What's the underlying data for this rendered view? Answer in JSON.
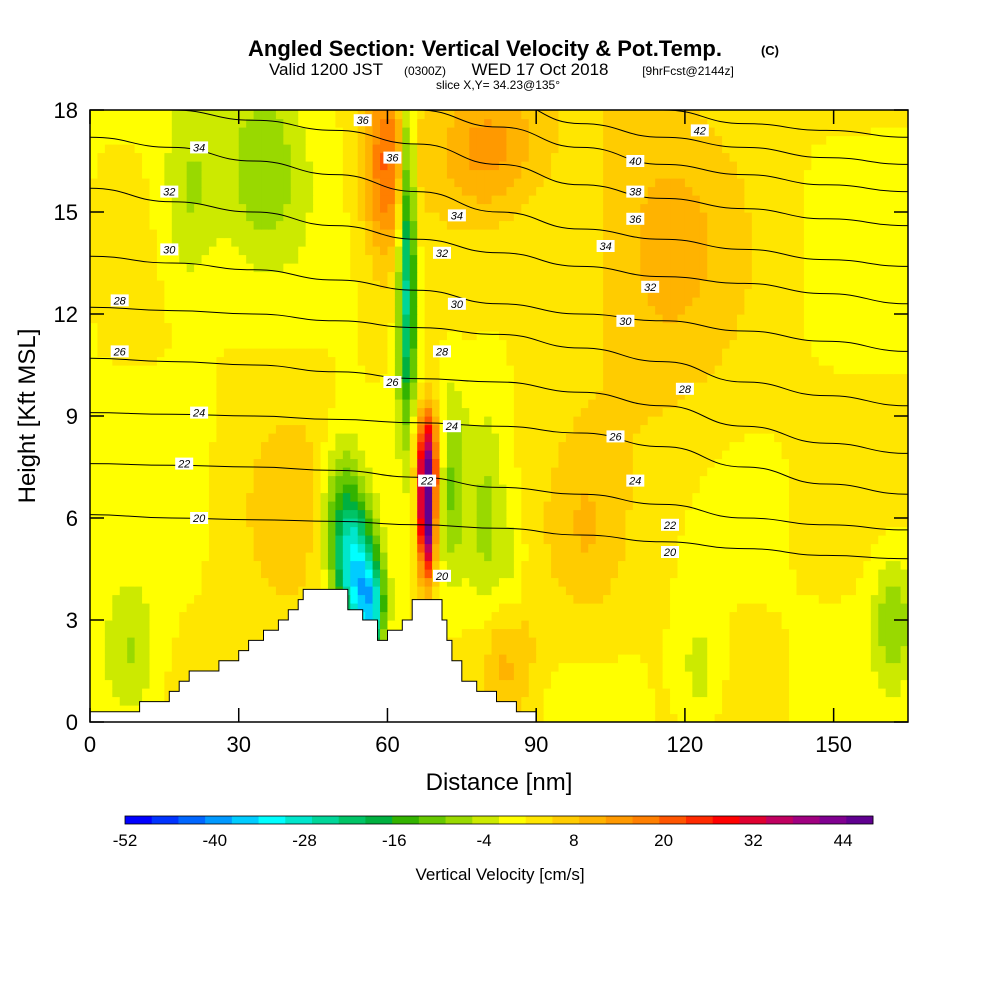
{
  "chart_data": {
    "type": "heatmap",
    "title": "Angled Section: Vertical Velocity & Pot.Temp.",
    "title_units": "(C)",
    "subtitle": {
      "valid": "Valid 1200 JST",
      "zulu": "(0300Z)",
      "date": "WED 17 Oct 2018",
      "forecast": "[9hrFcst@2144z]"
    },
    "slice_label": "slice X,Y= 34.23@135°",
    "xlabel": "Distance [nm]",
    "ylabel": "Height [Kft MSL]",
    "xlim": [
      0,
      165
    ],
    "ylim": [
      0,
      18
    ],
    "x_ticks": [
      "0",
      "30",
      "60",
      "90",
      "120",
      "150"
    ],
    "x_tick_values": [
      0,
      30,
      60,
      90,
      120,
      150
    ],
    "y_ticks": [
      "0",
      "3",
      "6",
      "9",
      "12",
      "15",
      "18"
    ],
    "y_tick_values": [
      0,
      3,
      6,
      9,
      12,
      15,
      18
    ],
    "colorbar": {
      "label": "Vertical Velocity [cm/s]",
      "range": [
        -52,
        48
      ],
      "tick_labels": [
        "-52",
        "-40",
        "-28",
        "-16",
        "-4",
        "8",
        "20",
        "32",
        "44"
      ],
      "tick_values": [
        -52,
        -40,
        -28,
        -16,
        -4,
        8,
        20,
        32,
        44
      ],
      "colors": [
        "#0000ff",
        "#0033ff",
        "#0066ff",
        "#0099ff",
        "#00ccff",
        "#00ffff",
        "#00e6cc",
        "#00d699",
        "#00c466",
        "#00b040",
        "#33b300",
        "#66c800",
        "#99d900",
        "#ccea00",
        "#ffff00",
        "#ffe600",
        "#ffcc00",
        "#ffb300",
        "#ff9900",
        "#ff7f00",
        "#ff5500",
        "#ff2a00",
        "#ff0000",
        "#e00030",
        "#c00060",
        "#a00080",
        "#800090",
        "#600090"
      ]
    },
    "terrain_profile": [
      [
        0,
        0.3
      ],
      [
        10,
        0.3
      ],
      [
        10,
        0.6
      ],
      [
        16,
        0.6
      ],
      [
        16,
        0.9
      ],
      [
        18,
        0.9
      ],
      [
        18,
        1.2
      ],
      [
        20,
        1.2
      ],
      [
        20,
        1.5
      ],
      [
        26,
        1.5
      ],
      [
        26,
        1.8
      ],
      [
        30,
        1.8
      ],
      [
        30,
        2.1
      ],
      [
        32,
        2.1
      ],
      [
        32,
        2.4
      ],
      [
        35,
        2.4
      ],
      [
        35,
        2.7
      ],
      [
        38,
        2.7
      ],
      [
        38,
        3.0
      ],
      [
        40,
        3.0
      ],
      [
        40,
        3.3
      ],
      [
        42,
        3.3
      ],
      [
        42,
        3.6
      ],
      [
        43,
        3.6
      ],
      [
        43,
        3.9
      ],
      [
        52,
        3.9
      ],
      [
        52,
        3.3
      ],
      [
        55,
        3.3
      ],
      [
        55,
        3.0
      ],
      [
        58,
        3.0
      ],
      [
        58,
        2.4
      ],
      [
        60,
        2.4
      ],
      [
        60,
        2.7
      ],
      [
        63,
        2.7
      ],
      [
        63,
        3.0
      ],
      [
        65,
        3.0
      ],
      [
        65,
        3.6
      ],
      [
        71,
        3.6
      ],
      [
        71,
        3.0
      ],
      [
        72,
        3.0
      ],
      [
        72,
        2.4
      ],
      [
        73,
        2.4
      ],
      [
        73,
        1.8
      ],
      [
        75,
        1.8
      ],
      [
        75,
        1.2
      ],
      [
        78,
        1.2
      ],
      [
        78,
        0.9
      ],
      [
        82,
        0.9
      ],
      [
        82,
        0.6
      ],
      [
        86,
        0.6
      ],
      [
        86,
        0.3
      ],
      [
        90,
        0.3
      ],
      [
        90,
        0
      ]
    ],
    "contours": [
      {
        "theta": 20,
        "heights": [
          6.1,
          6.0,
          5.95,
          5.9,
          5.8,
          5.7,
          5.5,
          5.3,
          5.1,
          4.9,
          4.8
        ]
      },
      {
        "theta": 22,
        "heights": [
          7.6,
          7.55,
          7.5,
          7.4,
          7.2,
          6.9,
          6.7,
          6.4,
          6.0,
          5.8,
          5.65
        ]
      },
      {
        "theta": 24,
        "heights": [
          9.1,
          9.05,
          9.0,
          8.9,
          8.8,
          8.7,
          8.5,
          8.1,
          7.5,
          7.0,
          6.7
        ]
      },
      {
        "theta": 26,
        "heights": [
          10.7,
          10.6,
          10.5,
          10.3,
          10.1,
          10.0,
          9.7,
          9.3,
          8.7,
          8.2,
          7.9
        ]
      },
      {
        "theta": 28,
        "heights": [
          12.2,
          12.1,
          12.0,
          11.8,
          11.6,
          11.4,
          11.0,
          10.6,
          10.0,
          9.6,
          9.3
        ]
      },
      {
        "theta": 30,
        "heights": [
          13.7,
          13.5,
          13.3,
          13.0,
          12.7,
          12.3,
          12.0,
          11.8,
          11.5,
          11.2,
          10.9
        ]
      },
      {
        "theta": 32,
        "heights": [
          15.7,
          15.3,
          15.0,
          14.6,
          14.2,
          13.8,
          13.4,
          13.1,
          12.9,
          12.6,
          12.3
        ]
      },
      {
        "theta": 34,
        "heights": [
          17.2,
          16.9,
          16.5,
          16.1,
          15.6,
          15.0,
          14.5,
          14.2,
          13.9,
          13.6,
          13.4
        ]
      },
      {
        "theta": 36,
        "heights": [
          18.2,
          18.0,
          17.7,
          17.4,
          17.0,
          16.4,
          15.8,
          15.4,
          15.1,
          14.8,
          14.6
        ]
      },
      {
        "theta": 38,
        "heights": [
          19.0,
          18.9,
          18.7,
          18.4,
          18.0,
          17.5,
          16.9,
          16.4,
          16.1,
          15.8,
          15.6
        ]
      },
      {
        "theta": 40,
        "heights": [
          19.8,
          19.6,
          19.4,
          19.1,
          18.8,
          18.3,
          17.6,
          17.2,
          16.9,
          16.6,
          16.4
        ]
      },
      {
        "theta": 42,
        "heights": [
          20.5,
          20.3,
          20.1,
          19.8,
          19.5,
          19.1,
          18.5,
          18.0,
          17.6,
          17.4,
          17.2
        ]
      }
    ],
    "contour_x": [
      0,
      16.5,
      33,
      49.5,
      66,
      82.5,
      99,
      115.5,
      132,
      148.5,
      165
    ],
    "contour_labels": [
      {
        "text": "20",
        "x": 22,
        "y": 6.0
      },
      {
        "text": "22",
        "x": 19,
        "y": 7.6
      },
      {
        "text": "24",
        "x": 22,
        "y": 9.1
      },
      {
        "text": "26",
        "x": 6,
        "y": 10.9
      },
      {
        "text": "28",
        "x": 6,
        "y": 12.4
      },
      {
        "text": "30",
        "x": 16,
        "y": 13.9
      },
      {
        "text": "32",
        "x": 16,
        "y": 15.6
      },
      {
        "text": "34",
        "x": 22,
        "y": 16.9
      },
      {
        "text": "36",
        "x": 55,
        "y": 17.7
      },
      {
        "text": "36",
        "x": 61,
        "y": 16.6
      },
      {
        "text": "34",
        "x": 74,
        "y": 14.9
      },
      {
        "text": "32",
        "x": 71,
        "y": 13.8
      },
      {
        "text": "30",
        "x": 74,
        "y": 12.3
      },
      {
        "text": "28",
        "x": 71,
        "y": 10.9
      },
      {
        "text": "26",
        "x": 61,
        "y": 10.0
      },
      {
        "text": "24",
        "x": 73,
        "y": 8.7
      },
      {
        "text": "22",
        "x": 68,
        "y": 7.1
      },
      {
        "text": "20",
        "x": 71,
        "y": 4.3
      },
      {
        "text": "42",
        "x": 123,
        "y": 17.4
      },
      {
        "text": "40",
        "x": 110,
        "y": 16.5
      },
      {
        "text": "38",
        "x": 110,
        "y": 15.6
      },
      {
        "text": "36",
        "x": 110,
        "y": 14.8
      },
      {
        "text": "34",
        "x": 104,
        "y": 14.0
      },
      {
        "text": "32",
        "x": 113,
        "y": 12.8
      },
      {
        "text": "30",
        "x": 108,
        "y": 11.8
      },
      {
        "text": "28",
        "x": 120,
        "y": 9.8
      },
      {
        "text": "26",
        "x": 106,
        "y": 8.4
      },
      {
        "text": "24",
        "x": 110,
        "y": 7.1
      },
      {
        "text": "22",
        "x": 117,
        "y": 5.8
      },
      {
        "text": "20",
        "x": 117,
        "y": 5.0
      }
    ],
    "velocity_features": [
      {
        "kind": "updraft",
        "x": 68,
        "y": 6.1,
        "peak": 48,
        "sx": 1.2,
        "sy": 1.3
      },
      {
        "kind": "updraft",
        "x": 68,
        "y": 8.0,
        "peak": 24,
        "sx": 1.8,
        "sy": 1.0
      },
      {
        "kind": "updraft",
        "x": 60,
        "y": 16.5,
        "peak": 18,
        "sx": 3.5,
        "sy": 2.0
      },
      {
        "kind": "updraft",
        "x": 80,
        "y": 17.0,
        "peak": 12,
        "sx": 8.0,
        "sy": 1.5
      },
      {
        "kind": "updraft",
        "x": 115,
        "y": 14.0,
        "peak": 8,
        "sx": 12.0,
        "sy": 4.0
      },
      {
        "kind": "updraft",
        "x": 84,
        "y": 2.0,
        "peak": 10,
        "sx": 4.0,
        "sy": 1.5
      },
      {
        "kind": "updraft",
        "x": 100,
        "y": 5.5,
        "peak": 6,
        "sx": 6.0,
        "sy": 2.0
      },
      {
        "kind": "updraft",
        "x": 40,
        "y": 6.0,
        "peak": 5,
        "sx": 8.0,
        "sy": 2.5
      },
      {
        "kind": "downdraft",
        "x": 54,
        "y": 4.2,
        "peak": -30,
        "sx": 2.8,
        "sy": 1.4
      },
      {
        "kind": "downdraft",
        "x": 57,
        "y": 3.3,
        "peak": -22,
        "sx": 1.8,
        "sy": 1.0
      },
      {
        "kind": "downdraft",
        "x": 51,
        "y": 6.0,
        "peak": -18,
        "sx": 3.0,
        "sy": 1.6
      },
      {
        "kind": "downdraft",
        "x": 64,
        "y": 15.0,
        "peak": -22,
        "sx": 1.2,
        "sy": 3.5
      },
      {
        "kind": "downdraft",
        "x": 64,
        "y": 11.5,
        "peak": -12,
        "sx": 1.5,
        "sy": 2.5
      },
      {
        "kind": "downdraft",
        "x": 73,
        "y": 7.0,
        "peak": -10,
        "sx": 2.0,
        "sy": 2.0
      },
      {
        "kind": "downdraft",
        "x": 80,
        "y": 5.5,
        "peak": -8,
        "sx": 2.5,
        "sy": 2.5
      },
      {
        "kind": "downdraft",
        "x": 35,
        "y": 16.5,
        "peak": -10,
        "sx": 6.0,
        "sy": 2.0
      },
      {
        "kind": "downdraft",
        "x": 20,
        "y": 15.5,
        "peak": -8,
        "sx": 4.0,
        "sy": 2.0
      },
      {
        "kind": "downdraft",
        "x": 8,
        "y": 2.0,
        "peak": -8,
        "sx": 4.0,
        "sy": 1.5
      },
      {
        "kind": "downdraft",
        "x": 162,
        "y": 3.0,
        "peak": -10,
        "sx": 3.0,
        "sy": 1.3
      },
      {
        "kind": "downdraft",
        "x": 123,
        "y": 1.6,
        "peak": -6,
        "sx": 3.0,
        "sy": 1.2
      },
      {
        "kind": "downdraft",
        "x": 85,
        "y": 4.0,
        "peak": -6,
        "sx": 2.0,
        "sy": 1.5
      }
    ]
  }
}
